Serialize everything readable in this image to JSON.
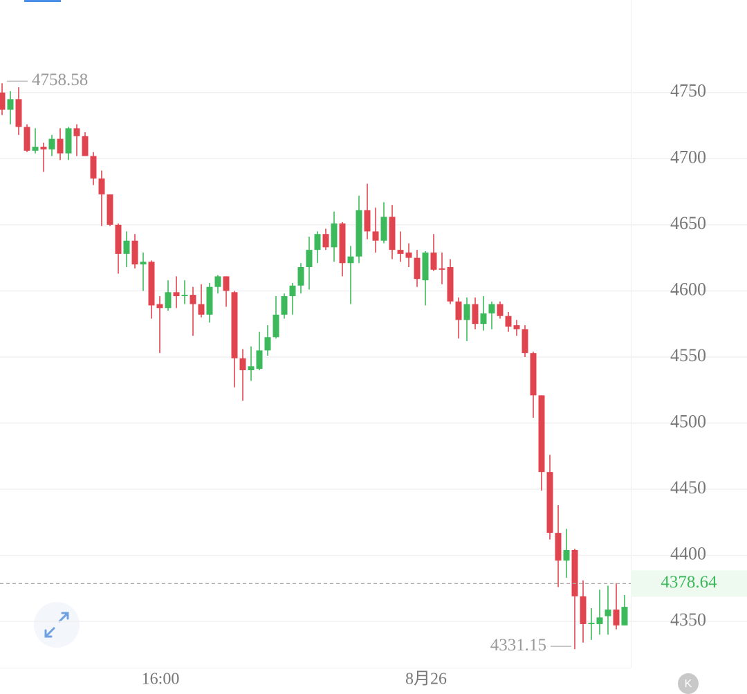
{
  "chart_data": {
    "type": "candlestick",
    "categories": [
      null,
      null,
      null,
      null,
      null,
      null,
      null,
      null,
      null,
      null,
      null,
      null,
      null,
      null,
      null,
      null,
      null,
      null,
      null,
      "16:00",
      null,
      null,
      null,
      null,
      null,
      null,
      null,
      null,
      null,
      null,
      null,
      null,
      null,
      null,
      null,
      null,
      null,
      null,
      null,
      null,
      null,
      null,
      null,
      null,
      null,
      null,
      null,
      null,
      null,
      null,
      null,
      "8月26",
      null,
      null,
      null,
      null,
      null,
      null,
      null,
      null,
      null,
      null,
      null,
      null,
      null,
      null,
      null,
      null,
      null,
      null,
      null,
      null,
      null,
      null,
      null,
      null
    ],
    "open": [
      4750,
      4737,
      4745,
      4724,
      4706,
      4709,
      4707,
      4715,
      4704,
      4723,
      4717,
      4702,
      4685,
      4673,
      4650,
      4628,
      4638,
      4620,
      4622,
      4590,
      4587,
      4599,
      4596,
      4597,
      4590,
      4582,
      4603,
      4611,
      4599,
      4549,
      4540,
      4541,
      4555,
      4565,
      4582,
      4596,
      4604,
      4618,
      4631,
      4643,
      4633,
      4651,
      4621,
      4626,
      4661,
      4645,
      4638,
      4656,
      4631,
      4629,
      4625,
      4608,
      4629,
      4617,
      4618,
      4592,
      4578,
      4590,
      4575,
      4583,
      4590,
      4581,
      4574,
      4571,
      4553,
      4521,
      4463,
      4417,
      4396,
      4404,
      4369,
      4348,
      4348,
      4354,
      4359,
      4347
    ],
    "high": [
      4757,
      4751,
      4754,
      4726,
      4723,
      4712,
      4718,
      4723,
      4724,
      4726,
      4720,
      4705,
      4691,
      4673,
      4651,
      4645,
      4643,
      4629,
      4623,
      4596,
      4608,
      4611,
      4608,
      4603,
      4605,
      4606,
      4612,
      4611,
      4600,
      4556,
      4558,
      4569,
      4574,
      4596,
      4598,
      4606,
      4621,
      4641,
      4645,
      4647,
      4660,
      4652,
      4634,
      4672,
      4681,
      4663,
      4667,
      4665,
      4645,
      4636,
      4631,
      4630,
      4643,
      4629,
      4624,
      4595,
      4595,
      4595,
      4596,
      4592,
      4592,
      4584,
      4578,
      4574,
      4554,
      4521,
      4476,
      4438,
      4420,
      4405,
      4381,
      4360,
      4374,
      4377,
      4379,
      4370
    ],
    "low": [
      4733,
      4726,
      4718,
      4705,
      4704,
      4690,
      4702,
      4699,
      4699,
      4702,
      4702,
      4680,
      4649,
      4649,
      4613,
      4618,
      4617,
      4600,
      4579,
      4553,
      4585,
      4587,
      4590,
      4566,
      4580,
      4576,
      4598,
      4588,
      4527,
      4517,
      4532,
      4540,
      4551,
      4564,
      4579,
      4582,
      4598,
      4601,
      4621,
      4631,
      4622,
      4611,
      4590,
      4621,
      4639,
      4629,
      4636,
      4624,
      4622,
      4618,
      4603,
      4589,
      4615,
      4605,
      4590,
      4564,
      4562,
      4571,
      4570,
      4571,
      4579,
      4569,
      4566,
      4550,
      4504,
      4449,
      4412,
      4376,
      4383,
      4329,
      4334,
      4336,
      4340,
      4340,
      4344,
      4347
    ],
    "close": [
      4737,
      4745,
      4724,
      4706,
      4709,
      4707,
      4715,
      4704,
      4723,
      4717,
      4702,
      4685,
      4673,
      4650,
      4628,
      4638,
      4620,
      4622,
      4589,
      4587,
      4599,
      4596,
      4597,
      4590,
      4582,
      4603,
      4611,
      4600,
      4549,
      4540,
      4543,
      4555,
      4565,
      4582,
      4596,
      4604,
      4618,
      4631,
      4643,
      4633,
      4651,
      4621,
      4626,
      4661,
      4645,
      4638,
      4656,
      4631,
      4628,
      4625,
      4609,
      4629,
      4616,
      4616,
      4592,
      4578,
      4590,
      4575,
      4583,
      4590,
      4581,
      4573,
      4571,
      4553,
      4521,
      4463,
      4417,
      4396,
      4404,
      4369,
      4348,
      4349,
      4353,
      4359,
      4347,
      4361
    ],
    "up_color": "#3cb95b",
    "down_color": "#e0444f",
    "ylim": [
      4315,
      4820
    ],
    "yticks": [
      4350,
      4400,
      4450,
      4500,
      4550,
      4600,
      4650,
      4700,
      4750
    ],
    "grid": true,
    "high_marker": 4758.58,
    "low_marker": 4331.15,
    "last_price": 4378.64
  },
  "controls": {
    "k_button": "K"
  }
}
